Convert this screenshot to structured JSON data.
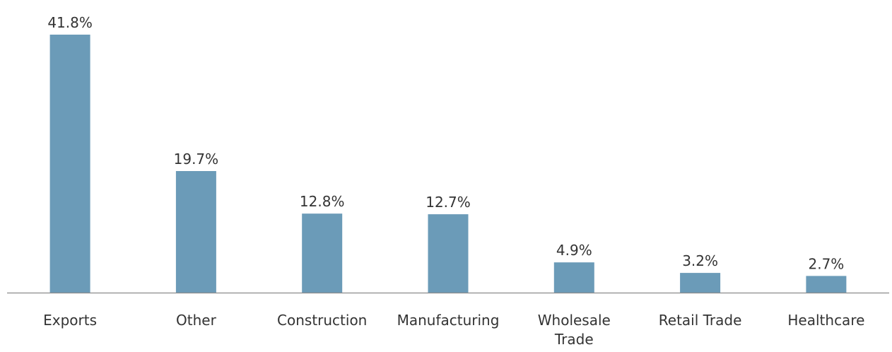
{
  "chart_data": {
    "type": "bar",
    "categories": [
      "Exports",
      "Other",
      "Construction",
      "Manufacturing",
      "Wholesale Trade",
      "Retail Trade",
      "Healthcare"
    ],
    "category_lines": [
      [
        "Exports"
      ],
      [
        "Other"
      ],
      [
        "Construction"
      ],
      [
        "Manufacturing"
      ],
      [
        "Wholesale",
        "Trade"
      ],
      [
        "Retail Trade"
      ],
      [
        "Healthcare"
      ]
    ],
    "values": [
      41.8,
      19.7,
      12.8,
      12.7,
      4.9,
      3.2,
      2.7
    ],
    "value_labels": [
      "41.8%",
      "19.7%",
      "12.8%",
      "12.7%",
      "4.9%",
      "3.2%",
      "2.7%"
    ],
    "unit": "%",
    "ylim": [
      0,
      41.8
    ],
    "grid": false,
    "legend": "none",
    "colors": {
      "bar": "#6b9bb8",
      "text": "#333333",
      "axis": "#8c8c8c"
    }
  }
}
